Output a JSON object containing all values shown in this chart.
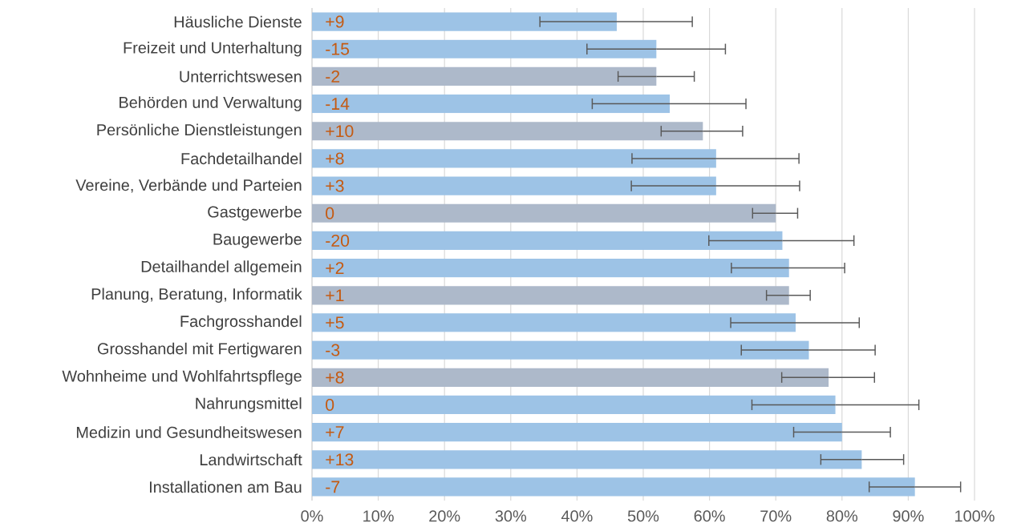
{
  "chart_data": {
    "type": "bar",
    "orientation": "horizontal",
    "categories": [
      "Häusliche Dienste",
      "Freizeit und Unterhaltung",
      "Unterrichtswesen",
      "Behörden und Verwaltung",
      "Persönliche Dienstleistungen",
      "Fachdetailhandel",
      "Vereine, Verbände und Parteien",
      "Gastgewerbe",
      "Baugewerbe",
      "Detailhandel allgemein",
      "Planung, Beratung, Informatik",
      "Fachgrosshandel",
      "Grosshandel mit Fertigwaren",
      "Wohnheime und Wohlfahrtspflege",
      "Nahrungsmittel",
      "Medizin und Gesundheitswesen",
      "Landwirtschaft",
      "Installationen am Bau"
    ],
    "values": [
      46,
      52,
      52,
      54,
      59,
      61,
      61,
      70,
      71,
      72,
      72,
      73,
      75,
      78,
      79,
      80,
      83,
      91
    ],
    "colors": [
      "#9dc3e6",
      "#9dc3e6",
      "#adb9ca",
      "#9dc3e6",
      "#adb9ca",
      "#9dc3e6",
      "#9dc3e6",
      "#adb9ca",
      "#9dc3e6",
      "#9dc3e6",
      "#adb9ca",
      "#9dc3e6",
      "#9dc3e6",
      "#adb9ca",
      "#9dc3e6",
      "#9dc3e6",
      "#9dc3e6",
      "#9dc3e6"
    ],
    "errors": [
      [
        34.4,
        57.4
      ],
      [
        41.5,
        62.4
      ],
      [
        46.2,
        57.7
      ],
      [
        42.3,
        65.5
      ],
      [
        52.7,
        65.0
      ],
      [
        48.3,
        73.5
      ],
      [
        48.2,
        73.6
      ],
      [
        66.5,
        73.3
      ],
      [
        59.9,
        81.8
      ],
      [
        63.3,
        80.4
      ],
      [
        68.6,
        75.2
      ],
      [
        63.2,
        82.6
      ],
      [
        64.8,
        85.0
      ],
      [
        70.9,
        84.9
      ],
      [
        66.4,
        91.6
      ],
      [
        72.7,
        87.3
      ],
      [
        76.8,
        89.3
      ],
      [
        84.1,
        97.9
      ]
    ],
    "annotations": [
      "+9",
      "-15",
      "-2",
      "-14",
      "+10",
      "+8",
      "+3",
      "0",
      "-20",
      "+2",
      "+1",
      "+5",
      "-3",
      "+8",
      "0",
      "+7",
      "+13",
      "-7"
    ],
    "xlim": [
      0,
      100
    ],
    "xticks": [
      {
        "value": 0,
        "label": "0%"
      },
      {
        "value": 10,
        "label": "10%"
      },
      {
        "value": 20,
        "label": "20%"
      },
      {
        "value": 30,
        "label": "30%"
      },
      {
        "value": 40,
        "label": "40%"
      },
      {
        "value": 50,
        "label": "50%"
      },
      {
        "value": 60,
        "label": "60%"
      },
      {
        "value": 70,
        "label": "70%"
      },
      {
        "value": 80,
        "label": "80%"
      },
      {
        "value": 90,
        "label": "90%"
      },
      {
        "value": 100,
        "label": "100%"
      }
    ],
    "grid": "x"
  }
}
